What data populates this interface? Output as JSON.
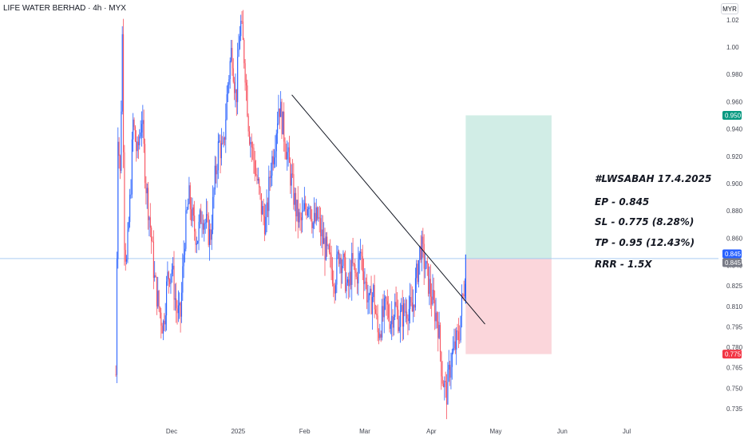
{
  "header": {
    "symbol_title": "LIFE WATER BERHAD · 4h · MYX",
    "currency": "MYR"
  },
  "colors": {
    "up": "#2962ff",
    "down": "#f7525f",
    "target_zone": "#d1ede6",
    "stop_zone": "#fbd6db",
    "target_tag": "#089981",
    "stop_tag": "#f23645",
    "price_tag": "#2962ff",
    "entry_tag": "#787b86"
  },
  "chart_data": {
    "type": "candlestick",
    "title": "LIFE WATER BERHAD · 4h · MYX",
    "y_ticks": [
      1.02,
      1.0,
      0.98,
      0.96,
      0.94,
      0.92,
      0.9,
      0.88,
      0.86,
      0.84,
      0.825,
      0.81,
      0.795,
      0.78,
      0.765,
      0.75,
      0.735
    ],
    "y_tick_labels": [
      "1.02",
      "1.00",
      "0.980",
      "0.960",
      "0.940",
      "0.920",
      "0.900",
      "0.880",
      "0.860",
      "0.840",
      "0.825",
      "0.810",
      "0.795",
      "0.780",
      "0.765",
      "0.750",
      "0.735"
    ],
    "x_labels": [
      {
        "label": "Dec",
        "date": "2024-12-01"
      },
      {
        "label": "2025",
        "date": "2025-01-01"
      },
      {
        "label": "Feb",
        "date": "2025-02-01"
      },
      {
        "label": "Mar",
        "date": "2025-03-01"
      },
      {
        "label": "Apr",
        "date": "2025-04-01"
      },
      {
        "label": "May",
        "date": "2025-05-01"
      },
      {
        "label": "Jun",
        "date": "2025-06-01"
      },
      {
        "label": "Jul",
        "date": "2025-07-01"
      }
    ],
    "price_path": [
      [
        "2024-11-05",
        0.76
      ],
      [
        "2024-11-06",
        0.94
      ],
      [
        "2024-11-07",
        0.905
      ],
      [
        "2024-11-08",
        1.01
      ],
      [
        "2024-11-09",
        0.86
      ],
      [
        "2024-11-10",
        0.84
      ],
      [
        "2024-11-12",
        0.9
      ],
      [
        "2024-11-13",
        0.945
      ],
      [
        "2024-11-15",
        0.92
      ],
      [
        "2024-11-17",
        0.95
      ],
      [
        "2024-11-19",
        0.9
      ],
      [
        "2024-11-21",
        0.87
      ],
      [
        "2024-11-23",
        0.83
      ],
      [
        "2024-11-25",
        0.81
      ],
      [
        "2024-11-27",
        0.795
      ],
      [
        "2024-11-29",
        0.83
      ],
      [
        "2024-12-01",
        0.84
      ],
      [
        "2024-12-03",
        0.81
      ],
      [
        "2024-12-05",
        0.8
      ],
      [
        "2024-12-07",
        0.86
      ],
      [
        "2024-12-09",
        0.89
      ],
      [
        "2024-12-11",
        0.87
      ],
      [
        "2024-12-13",
        0.86
      ],
      [
        "2024-12-15",
        0.88
      ],
      [
        "2024-12-17",
        0.87
      ],
      [
        "2024-12-19",
        0.86
      ],
      [
        "2024-12-21",
        0.9
      ],
      [
        "2024-12-23",
        0.93
      ],
      [
        "2024-12-25",
        0.92
      ],
      [
        "2024-12-27",
        0.97
      ],
      [
        "2024-12-29",
        1.0
      ],
      [
        "2024-12-31",
        0.96
      ],
      [
        "2025-01-02",
        1.02
      ],
      [
        "2025-01-04",
        0.99
      ],
      [
        "2025-01-06",
        0.94
      ],
      [
        "2025-01-08",
        0.92
      ],
      [
        "2025-01-10",
        0.9
      ],
      [
        "2025-01-12",
        0.88
      ],
      [
        "2025-01-14",
        0.87
      ],
      [
        "2025-01-16",
        0.91
      ],
      [
        "2025-01-18",
        0.93
      ],
      [
        "2025-01-20",
        0.96
      ],
      [
        "2025-01-22",
        0.94
      ],
      [
        "2025-01-24",
        0.92
      ],
      [
        "2025-01-26",
        0.9
      ],
      [
        "2025-01-28",
        0.88
      ],
      [
        "2025-01-30",
        0.87
      ],
      [
        "2025-02-01",
        0.88
      ],
      [
        "2025-02-03",
        0.89
      ],
      [
        "2025-02-05",
        0.87
      ],
      [
        "2025-02-07",
        0.875
      ],
      [
        "2025-02-09",
        0.86
      ],
      [
        "2025-02-11",
        0.85
      ],
      [
        "2025-02-13",
        0.84
      ],
      [
        "2025-02-15",
        0.83
      ],
      [
        "2025-02-17",
        0.85
      ],
      [
        "2025-02-19",
        0.84
      ],
      [
        "2025-02-21",
        0.82
      ],
      [
        "2025-02-23",
        0.84
      ],
      [
        "2025-02-25",
        0.83
      ],
      [
        "2025-02-27",
        0.85
      ],
      [
        "2025-03-01",
        0.83
      ],
      [
        "2025-03-03",
        0.81
      ],
      [
        "2025-03-05",
        0.82
      ],
      [
        "2025-03-07",
        0.79
      ],
      [
        "2025-03-09",
        0.8
      ],
      [
        "2025-03-11",
        0.81
      ],
      [
        "2025-03-13",
        0.8
      ],
      [
        "2025-03-15",
        0.81
      ],
      [
        "2025-03-17",
        0.8
      ],
      [
        "2025-03-19",
        0.805
      ],
      [
        "2025-03-21",
        0.81
      ],
      [
        "2025-03-23",
        0.805
      ],
      [
        "2025-03-25",
        0.83
      ],
      [
        "2025-03-27",
        0.855
      ],
      [
        "2025-03-29",
        0.84
      ],
      [
        "2025-03-31",
        0.825
      ],
      [
        "2025-04-02",
        0.81
      ],
      [
        "2025-04-04",
        0.8
      ],
      [
        "2025-04-06",
        0.76
      ],
      [
        "2025-04-08",
        0.745
      ],
      [
        "2025-04-10",
        0.77
      ],
      [
        "2025-04-12",
        0.78
      ],
      [
        "2025-04-14",
        0.79
      ],
      [
        "2025-04-15",
        0.81
      ],
      [
        "2025-04-16",
        0.82
      ],
      [
        "2025-04-17",
        0.845
      ]
    ],
    "trendline": {
      "from": [
        "2025-01-26",
        0.965
      ],
      "to": [
        "2025-04-26",
        0.797
      ]
    },
    "position": {
      "entry": 0.845,
      "stop": 0.775,
      "target": 0.95,
      "start_date": "2025-04-17",
      "end_date": "2025-05-27"
    },
    "price_tags": [
      {
        "label": "0.950",
        "value": 0.95,
        "color": "#089981"
      },
      {
        "label": "0.845",
        "value": 0.845,
        "color": "#2962ff"
      },
      {
        "label": "0.845",
        "value": 0.845,
        "color": "#787b86"
      },
      {
        "label": "0.775",
        "value": 0.775,
        "color": "#f23645"
      }
    ]
  },
  "annotations": [
    "#LWSABAH 17.4.2025",
    "EP - 0.845",
    "SL - 0.775 (8.28%)",
    "TP - 0.95 (12.43%)",
    "RRR - 1.5X"
  ]
}
